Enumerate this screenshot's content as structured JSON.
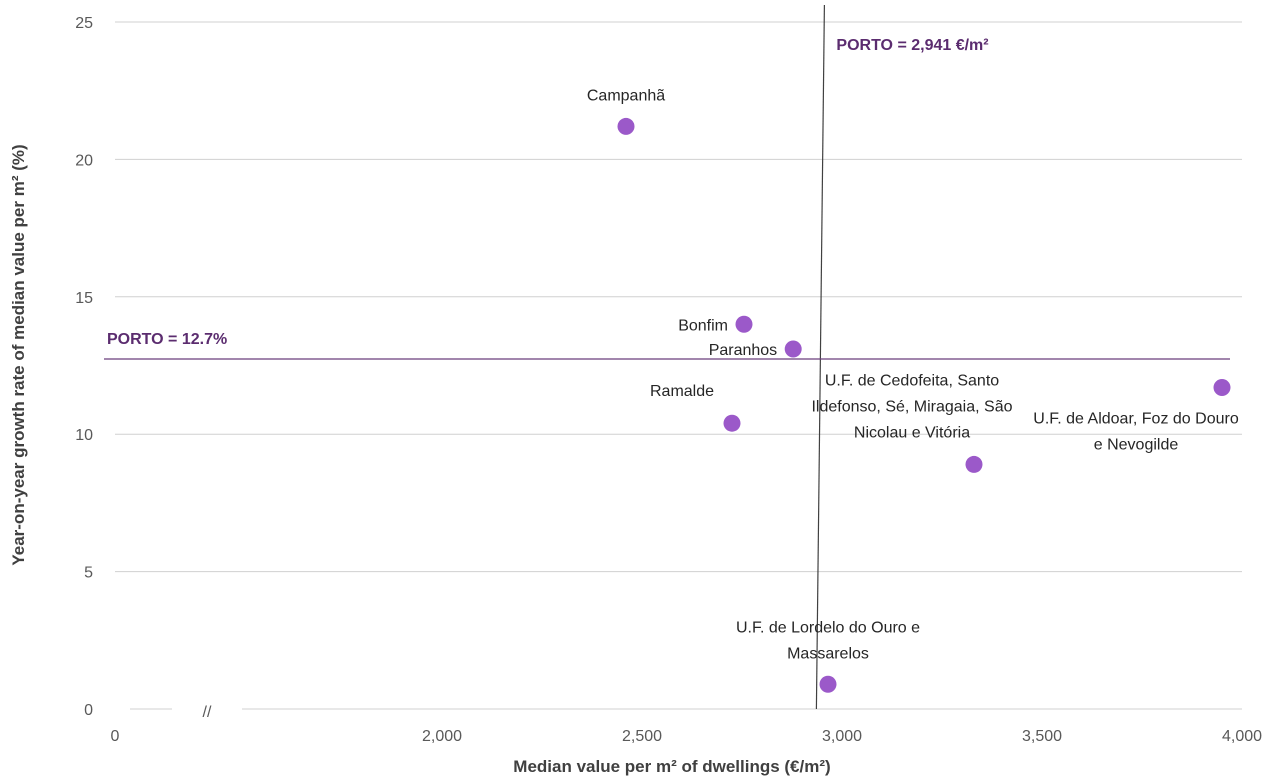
{
  "colors": {
    "point": "#9b59c9",
    "reference_text": "#5b2c6f",
    "reference_hline": "#6a3d7c",
    "reference_vline": "#404040",
    "grid": "#d0d0d0"
  },
  "chart_data": {
    "type": "scatter",
    "title": "",
    "xlabel": "Median value per m² of dwellings (€/m²)",
    "ylabel": "Year-on-year growth rate of median value per m² (%)",
    "xlim": [
      1500,
      4000
    ],
    "ylim": [
      0,
      25
    ],
    "x_axis_break": {
      "marker": "//",
      "origin_label": "0"
    },
    "x_ticks": [
      {
        "value": 2000,
        "label": "2,000"
      },
      {
        "value": 2500,
        "label": "2,500"
      },
      {
        "value": 3000,
        "label": "3,000"
      },
      {
        "value": 3500,
        "label": "3,500"
      },
      {
        "value": 4000,
        "label": "4,000"
      }
    ],
    "y_ticks": [
      {
        "value": 0,
        "label": "0"
      },
      {
        "value": 5,
        "label": "5"
      },
      {
        "value": 10,
        "label": "10"
      },
      {
        "value": 15,
        "label": "15"
      },
      {
        "value": 20,
        "label": "20"
      },
      {
        "value": 25,
        "label": "25"
      }
    ],
    "grid": {
      "horizontal": true,
      "vertical": false
    },
    "points": [
      {
        "label_lines": [
          "Campanhã"
        ],
        "x": 2460,
        "y": 21.2,
        "label_pos": "above"
      },
      {
        "label_lines": [
          "Bonfim"
        ],
        "x": 2755,
        "y": 14.0,
        "label_pos": "left"
      },
      {
        "label_lines": [
          "Paranhos"
        ],
        "x": 2878,
        "y": 13.1,
        "label_pos": "left"
      },
      {
        "label_lines": [
          "Ramalde"
        ],
        "x": 2725,
        "y": 10.4,
        "label_pos": "above-left"
      },
      {
        "label_lines": [
          "U.F. de Cedofeita, Santo",
          "Ildefonso, Sé, Miragaia, São",
          "Nicolau e Vitória"
        ],
        "x": 3330,
        "y": 8.9,
        "label_pos": "above-left"
      },
      {
        "label_lines": [
          "U.F. de Aldoar, Foz do Douro",
          "e Nevogilde"
        ],
        "x": 3950,
        "y": 11.7,
        "label_pos": "below-left"
      },
      {
        "label_lines": [
          "U.F. de Lordelo do Ouro e",
          "Massarelos"
        ],
        "x": 2965,
        "y": 0.9,
        "label_pos": "above"
      }
    ],
    "reference_lines": [
      {
        "orientation": "vertical",
        "value": 2941,
        "label": "PORTO = 2,941 €/m²"
      },
      {
        "orientation": "horizontal",
        "value": 12.7,
        "label": "PORTO = 12.7%"
      }
    ]
  }
}
